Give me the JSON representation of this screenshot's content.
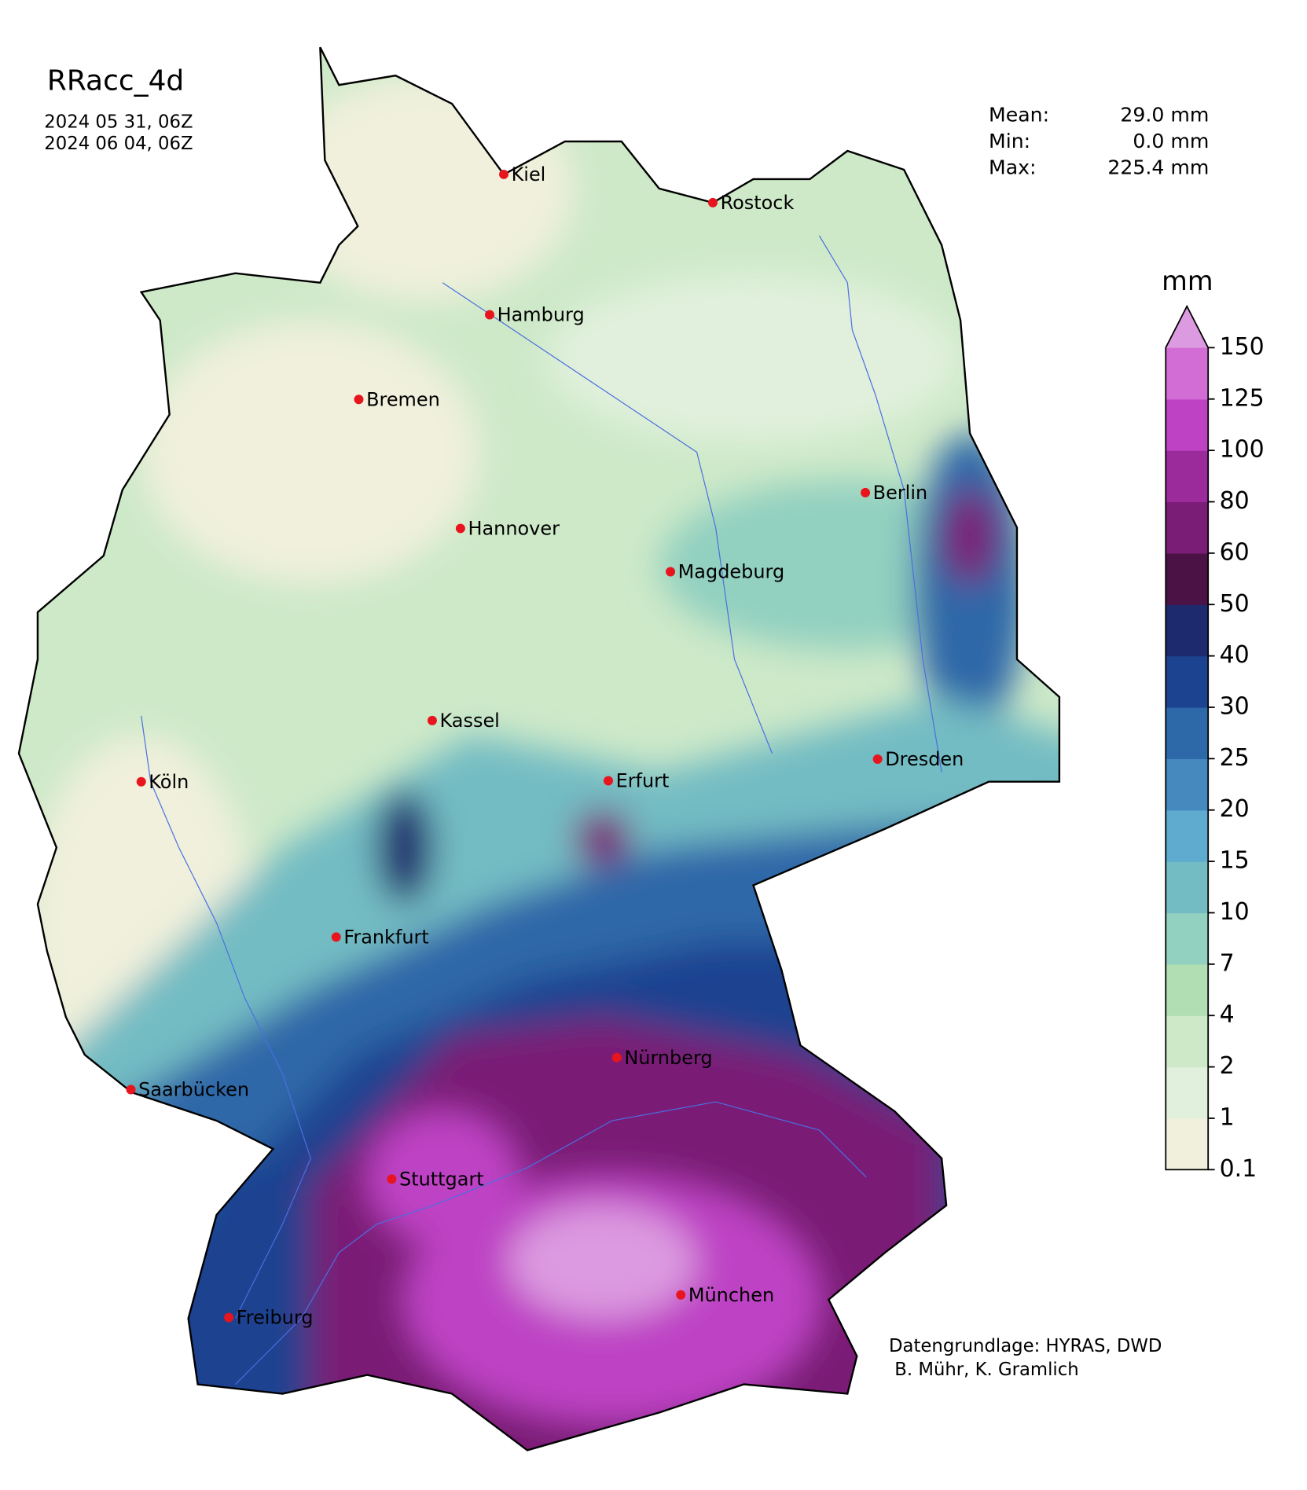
{
  "title": "RRacc_4d",
  "dates": [
    "2024 05 31, 06Z",
    "2024 06 04, 06Z"
  ],
  "stats": [
    {
      "label": "Mean:",
      "value": "29.0 mm"
    },
    {
      "label": "Min:",
      "value": "0.0 mm"
    },
    {
      "label": "Max:",
      "value": "225.4 mm"
    }
  ],
  "cities": [
    "Kiel",
    "Rostock",
    "Hamburg",
    "Bremen",
    "Berlin",
    "Hannover",
    "Magdeburg",
    "Kassel",
    "Dresden",
    "Köln",
    "Erfurt",
    "Frankfurt",
    "Nürnberg",
    "Saarbücken",
    "Stuttgart",
    "München",
    "Freiburg"
  ],
  "colorbar": {
    "unit": "mm",
    "ticks": [
      0.1,
      1,
      2,
      4,
      7,
      10,
      15,
      20,
      25,
      30,
      40,
      50,
      60,
      80,
      100,
      125,
      150
    ],
    "colors": [
      "#f0f0dc",
      "#e1f0dd",
      "#cde9c8",
      "#b2deb3",
      "#92d0c0",
      "#73bcc3",
      "#5eabcf",
      "#4589bf",
      "#2d68a8",
      "#1c4390",
      "#1d2a6d",
      "#4b1245",
      "#7a1d76",
      "#9b2a9a",
      "#be42c4",
      "#d36dd6"
    ],
    "extend_color": "#dc9ae0"
  },
  "credits": [
    "Datengrundlage: HYRAS, DWD",
    " B. Mühr, K. Gramlich"
  ]
}
